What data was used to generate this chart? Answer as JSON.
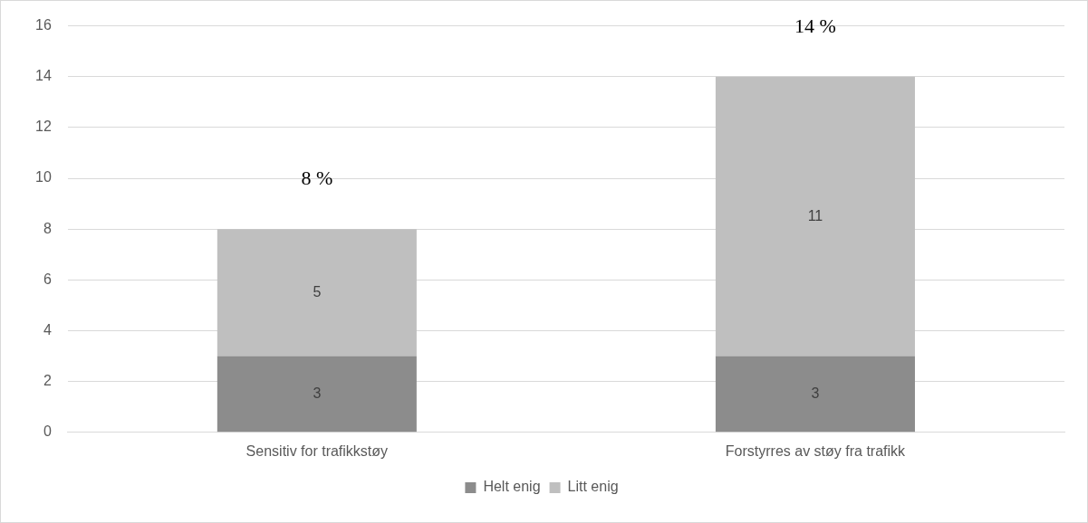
{
  "chart_data": {
    "type": "bar",
    "stacked": true,
    "categories": [
      "Sensitiv for trafikkstøy",
      "Forstyrres av støy fra trafikk"
    ],
    "series": [
      {
        "name": "Helt enig",
        "color": "#8c8c8c",
        "values": [
          3,
          3
        ]
      },
      {
        "name": "Litt enig",
        "color": "#bfbfbf",
        "values": [
          5,
          11
        ]
      }
    ],
    "ylim": [
      0,
      16
    ],
    "yticks": [
      0,
      2,
      4,
      6,
      8,
      10,
      12,
      14,
      16
    ],
    "grid": "y",
    "legend": "bottom",
    "data_labels": true,
    "totals": [
      "8 %",
      "14 %"
    ]
  }
}
